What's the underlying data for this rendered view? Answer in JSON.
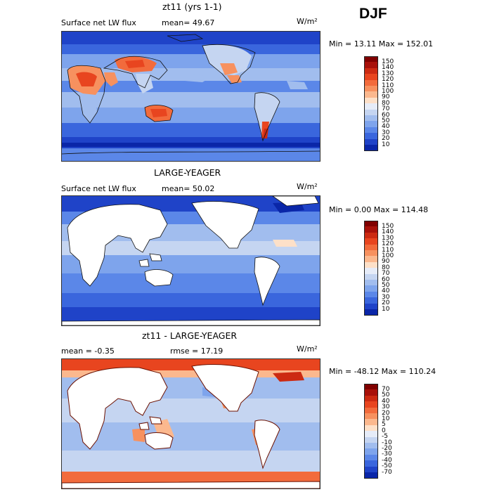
{
  "header": {
    "season": "DJF"
  },
  "panels": [
    {
      "id": "p1",
      "title": "zt11 (yrs 1-1)",
      "left_label": "Surface net LW flux",
      "mid_label": "mean=  49.67",
      "units": "W/m²",
      "minmax": "Min =   13.11 Max = 152.01",
      "colorbar_labels": [
        "150",
        "140",
        "130",
        "120",
        "110",
        "100",
        "90",
        "80",
        "70",
        "60",
        "50",
        "40",
        "30",
        "20",
        "10"
      ],
      "colorbar_colors": [
        "#800000",
        "#a8110a",
        "#cc2a12",
        "#e8451f",
        "#f26b3c",
        "#f7915f",
        "#fbb88e",
        "#fde0c8",
        "#e6ecf8",
        "#c5d5f1",
        "#a1bdee",
        "#7ea4ec",
        "#5b87e8",
        "#3a66dd",
        "#1f43c8",
        "#0a26a8"
      ],
      "land_white": false
    },
    {
      "id": "p2",
      "title": "LARGE-YEAGER",
      "left_label": "Surface net LW flux",
      "mid_label": "mean=  50.02",
      "units": "W/m²",
      "minmax": "Min =    0.00 Max = 114.48",
      "colorbar_labels": [
        "150",
        "140",
        "130",
        "120",
        "110",
        "100",
        "90",
        "80",
        "70",
        "60",
        "50",
        "40",
        "30",
        "20",
        "10"
      ],
      "colorbar_colors": [
        "#800000",
        "#a8110a",
        "#cc2a12",
        "#e8451f",
        "#f26b3c",
        "#f7915f",
        "#fbb88e",
        "#fde0c8",
        "#e6ecf8",
        "#c5d5f1",
        "#a1bdee",
        "#7ea4ec",
        "#5b87e8",
        "#3a66dd",
        "#1f43c8",
        "#0a26a8"
      ],
      "land_white": true
    },
    {
      "id": "p3",
      "title": "zt11 - LARGE-YEAGER",
      "left_label": "mean =   -0.35",
      "mid_label": "rmse =  17.19",
      "units": "W/m²",
      "minmax": "Min = -48.12 Max = 110.24",
      "colorbar_labels": [
        "70",
        "50",
        "40",
        "30",
        "20",
        "10",
        "5",
        "0",
        "-5",
        "-10",
        "-20",
        "-30",
        "-40",
        "-50",
        "-70"
      ],
      "colorbar_colors": [
        "#800000",
        "#a8110a",
        "#cc2a12",
        "#e8451f",
        "#f26b3c",
        "#f7915f",
        "#fbb88e",
        "#fde0c8",
        "#e6ecf8",
        "#c5d5f1",
        "#a1bdee",
        "#7ea4ec",
        "#5b87e8",
        "#3a66dd",
        "#1f43c8",
        "#0a26a8"
      ],
      "land_white": true
    }
  ]
}
